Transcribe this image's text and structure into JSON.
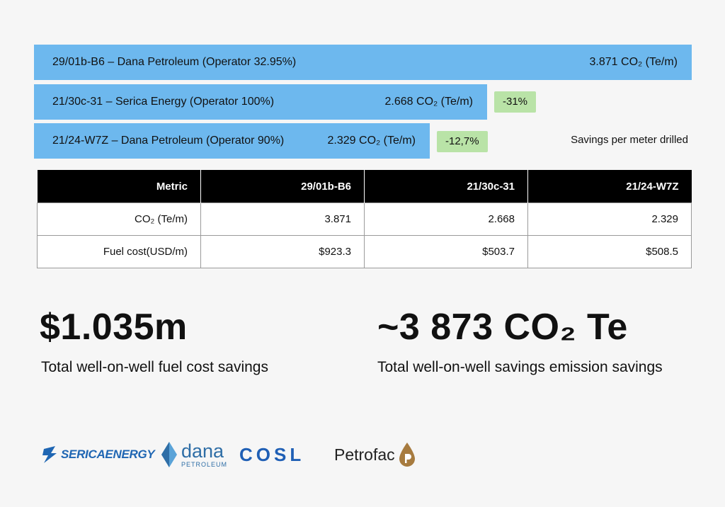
{
  "chart_data": {
    "type": "bar",
    "orientation": "horizontal",
    "unit": "CO₂ (Te/m)",
    "bars": [
      {
        "label": "29/01b-B6 – Dana Petroleum (Operator 32.95%)",
        "value": 3.871,
        "value_text": "3.871 CO₂ (Te/m)",
        "badge": ""
      },
      {
        "label": "21/30c-31 – Serica Energy (Operator 100%)",
        "value": 2.668,
        "value_text": "2.668 CO₂ (Te/m)",
        "badge": "-31%"
      },
      {
        "label": "21/24-W7Z – Dana Petroleum (Operator 90%)",
        "value": 2.329,
        "value_text": "2.329 CO₂ (Te/m)",
        "badge": "-12,7%"
      }
    ],
    "note": "Savings per meter drilled"
  },
  "table": {
    "headers": [
      "Metric",
      "29/01b-B6",
      "21/30c-31",
      "21/24-W7Z"
    ],
    "rows": [
      [
        "CO₂ (Te/m)",
        "3.871",
        "2.668",
        "2.329"
      ],
      [
        "Fuel cost(USD/m)",
        "$923.3",
        "$503.7",
        "$508.5"
      ]
    ]
  },
  "summary": {
    "cost_value": "$1.035m",
    "cost_label": "Total well-on-well fuel cost savings",
    "emission_value": "~3 873 CO₂ Te",
    "emission_label": "Total well-on-well savings emission savings"
  },
  "logos": {
    "serica": "SERICAENERGY",
    "dana_main": "dana",
    "dana_sub": "PETROLEUM",
    "cosl": "COSL",
    "petrofac": "Petrofac"
  },
  "colors": {
    "bar": "#6db8ee",
    "badge": "#b9e3a7",
    "serica": "#1f66b3",
    "dana": "#2f6ea6",
    "cosl": "#1f5fb5",
    "petrofac_mark": "#a77b3f"
  }
}
